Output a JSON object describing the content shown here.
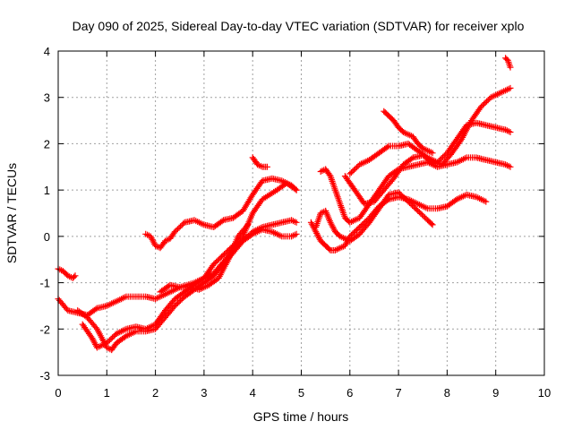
{
  "chart_data": {
    "type": "scatter",
    "title": "Day 090 of 2025, Sidereal Day-to-day VTEC variation (SDTVAR) for receiver xplo",
    "xlabel": "GPS time / hours",
    "ylabel": "SDTVAR / TECUs",
    "xlim": [
      0,
      10
    ],
    "ylim": [
      -3,
      4
    ],
    "x_ticks": [
      "0",
      "1",
      "2",
      "3",
      "4",
      "5",
      "6",
      "7",
      "8",
      "9",
      "10"
    ],
    "y_ticks": [
      "-3",
      "-2",
      "-1",
      "0",
      "1",
      "2",
      "3",
      "4"
    ],
    "grid": true,
    "marker": "+",
    "colors": {
      "points": "#ff0000",
      "grid": "#a0a0a0",
      "frame": "#000000"
    },
    "series": [
      {
        "x": [
          0.0,
          0.1,
          0.2,
          0.3,
          0.35
        ],
        "y": [
          -0.7,
          -0.75,
          -0.85,
          -0.9,
          -0.85
        ]
      },
      {
        "x": [
          0.0,
          0.2,
          0.4,
          0.6,
          0.8,
          1.0,
          1.2,
          1.4,
          1.6,
          1.8,
          2.0,
          2.2,
          2.5,
          2.8,
          3.0,
          3.2,
          3.5,
          3.8,
          4.0,
          4.2,
          4.5,
          4.7,
          4.9
        ],
        "y": [
          -1.35,
          -1.6,
          -1.65,
          -1.7,
          -1.55,
          -1.5,
          -1.4,
          -1.3,
          -1.3,
          -1.3,
          -1.35,
          -1.25,
          -1.1,
          -1.0,
          -0.9,
          -0.6,
          -0.3,
          0.0,
          0.5,
          0.8,
          1.0,
          1.15,
          1.0
        ]
      },
      {
        "x": [
          0.4,
          0.6,
          0.8,
          1.0,
          1.1,
          1.2,
          1.4,
          1.6,
          1.8,
          2.0,
          2.2,
          2.4,
          2.6,
          2.8,
          3.0,
          3.2,
          3.4,
          3.6,
          3.8,
          4.0,
          4.2,
          4.4,
          4.6,
          4.8,
          4.9
        ],
        "y": [
          -1.6,
          -1.75,
          -2.0,
          -2.4,
          -2.45,
          -2.3,
          -2.15,
          -2.05,
          -2.05,
          -2.0,
          -1.75,
          -1.5,
          -1.3,
          -1.15,
          -1.0,
          -0.85,
          -0.6,
          -0.35,
          -0.1,
          0.05,
          0.15,
          0.1,
          0.0,
          0.0,
          0.05
        ]
      },
      {
        "x": [
          0.5,
          0.7,
          0.8,
          1.0,
          1.2,
          1.4,
          1.6,
          1.8,
          2.0,
          2.2,
          2.4,
          2.6,
          2.8,
          3.0,
          3.2,
          3.4,
          3.6,
          3.8,
          4.0,
          4.2,
          4.4,
          4.6,
          4.8,
          4.9
        ],
        "y": [
          -1.9,
          -2.2,
          -2.4,
          -2.3,
          -2.1,
          -2.0,
          -1.95,
          -2.0,
          -1.9,
          -1.6,
          -1.35,
          -1.2,
          -1.05,
          -0.9,
          -0.8,
          -0.55,
          -0.3,
          -0.1,
          0.1,
          0.2,
          0.25,
          0.3,
          0.35,
          0.3
        ]
      },
      {
        "x": [
          2.1,
          2.3,
          2.5,
          2.7,
          2.9,
          3.1,
          3.3,
          3.5,
          3.7,
          3.9
        ],
        "y": [
          -1.2,
          -1.05,
          -1.1,
          -1.1,
          -1.15,
          -1.05,
          -0.9,
          -0.5,
          0.0,
          0.25
        ]
      },
      {
        "x": [
          1.8,
          1.9,
          2.0,
          2.1,
          2.2,
          2.3,
          2.4,
          2.6,
          2.8,
          3.0,
          3.2,
          3.4,
          3.6,
          3.8,
          4.0,
          4.2,
          4.4,
          4.6,
          4.8,
          4.9
        ],
        "y": [
          0.05,
          0.0,
          -0.2,
          -0.25,
          -0.1,
          -0.05,
          0.1,
          0.3,
          0.35,
          0.25,
          0.2,
          0.35,
          0.4,
          0.55,
          0.9,
          1.2,
          1.25,
          1.2,
          1.1,
          1.0
        ]
      },
      {
        "x": [
          4.0,
          4.1,
          4.2,
          4.3
        ],
        "y": [
          1.7,
          1.55,
          1.5,
          1.5
        ]
      },
      {
        "x": [
          5.2,
          5.3,
          5.4,
          5.5,
          5.6,
          5.7,
          5.8,
          5.9,
          6.0,
          6.2,
          6.4,
          6.6,
          6.8,
          7.0,
          7.2,
          7.4,
          7.6,
          7.8,
          8.0,
          8.2,
          8.4,
          8.6,
          8.8
        ],
        "y": [
          0.3,
          0.1,
          -0.1,
          -0.2,
          -0.3,
          -0.3,
          -0.25,
          -0.2,
          0.0,
          0.2,
          0.4,
          0.65,
          0.8,
          0.85,
          0.8,
          0.7,
          0.6,
          0.6,
          0.65,
          0.8,
          0.9,
          0.85,
          0.75
        ]
      },
      {
        "x": [
          5.3,
          5.4,
          5.5,
          5.6,
          5.7,
          5.8,
          6.0,
          6.2,
          6.4,
          6.6,
          6.8,
          7.0,
          7.2,
          7.4,
          7.6,
          7.7
        ],
        "y": [
          0.2,
          0.5,
          0.55,
          0.3,
          0.1,
          0.0,
          -0.1,
          0.05,
          0.3,
          0.6,
          0.9,
          0.95,
          0.75,
          0.55,
          0.35,
          0.25
        ]
      },
      {
        "x": [
          5.4,
          5.5,
          5.6,
          5.7,
          5.8,
          5.9,
          6.0,
          6.2,
          6.4,
          6.6,
          6.8,
          7.0,
          7.2,
          7.4,
          7.6,
          7.8,
          8.0,
          8.2,
          8.4,
          8.6,
          8.8,
          9.0,
          9.2,
          9.3
        ],
        "y": [
          1.4,
          1.45,
          1.3,
          1.0,
          0.7,
          0.4,
          0.3,
          0.4,
          0.7,
          1.0,
          1.3,
          1.45,
          1.5,
          1.55,
          1.6,
          1.5,
          1.55,
          1.6,
          1.7,
          1.7,
          1.65,
          1.6,
          1.55,
          1.5
        ]
      },
      {
        "x": [
          6.0,
          6.2,
          6.4,
          6.6,
          6.8,
          7.0,
          7.2,
          7.4,
          7.6,
          7.8,
          8.0,
          8.2,
          8.4,
          8.6,
          8.8,
          9.0,
          9.2,
          9.3
        ],
        "y": [
          1.35,
          1.55,
          1.65,
          1.8,
          1.95,
          1.95,
          2.0,
          1.85,
          1.7,
          1.6,
          1.8,
          2.1,
          2.4,
          2.45,
          2.4,
          2.35,
          2.3,
          2.25
        ]
      },
      {
        "x": [
          5.9,
          6.0,
          6.1,
          6.2,
          6.3,
          6.5,
          6.7,
          6.9,
          7.1,
          7.3,
          7.5,
          7.7,
          7.9,
          8.1,
          8.3,
          8.5,
          8.7,
          8.9,
          9.1,
          9.3
        ],
        "y": [
          1.3,
          1.15,
          1.0,
          0.85,
          0.7,
          0.75,
          1.0,
          1.25,
          1.55,
          1.7,
          1.75,
          1.6,
          1.55,
          1.8,
          2.1,
          2.5,
          2.8,
          3.0,
          3.1,
          3.2
        ]
      },
      {
        "x": [
          6.7,
          6.8,
          6.9,
          7.0,
          7.1,
          7.2,
          7.3,
          7.4,
          7.5,
          7.6,
          7.7
        ],
        "y": [
          2.7,
          2.6,
          2.5,
          2.35,
          2.25,
          2.2,
          2.15,
          2.0,
          1.9,
          1.85,
          1.8
        ]
      },
      {
        "x": [
          9.2,
          9.25,
          9.3
        ],
        "y": [
          3.85,
          3.8,
          3.65
        ]
      }
    ]
  }
}
